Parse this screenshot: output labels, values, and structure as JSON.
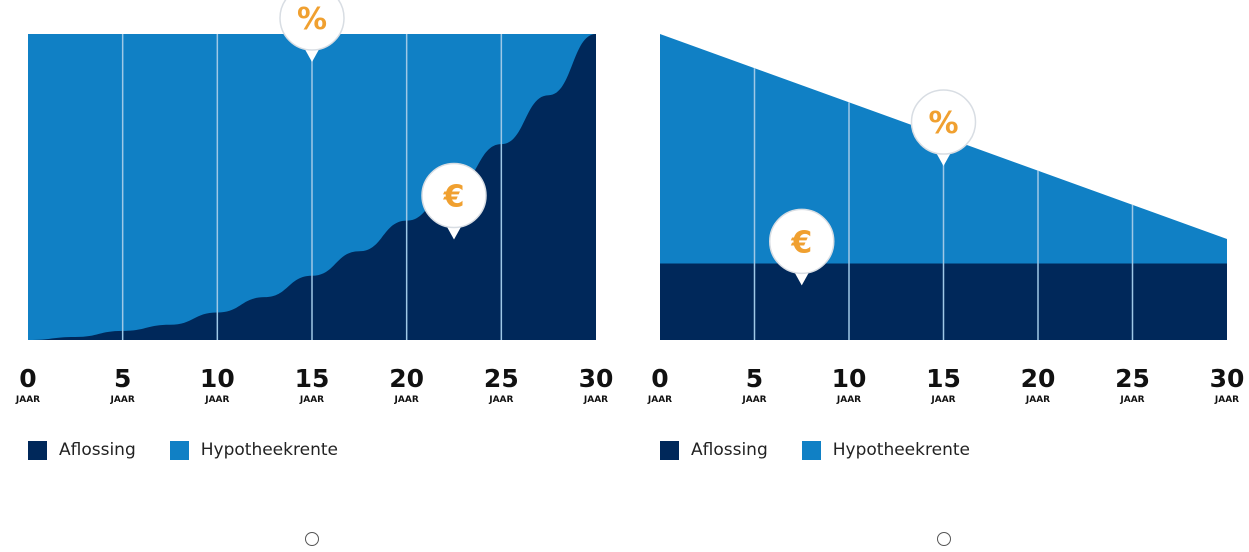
{
  "colors": {
    "aflossing": "#00285a",
    "hypotheekrente": "#1080c5",
    "gridline": "#9fc8e6",
    "marker": "#f0a030"
  },
  "markers": {
    "rente_icon": "percent-icon",
    "aflossing_icon": "euro-icon",
    "rente_glyph": "%",
    "aflossing_glyph": "€"
  },
  "chart_data": [
    {
      "type": "area",
      "x": [
        0,
        5,
        10,
        15,
        20,
        25,
        30
      ],
      "tick_labels": [
        "0",
        "5",
        "10",
        "15",
        "20",
        "25",
        "30"
      ],
      "tick_unit": "JAAR",
      "xlim": [
        0,
        30
      ],
      "ylim": [
        0,
        1
      ],
      "grid": true,
      "stacked": true,
      "series": [
        {
          "name": "Aflossing",
          "x": [
            0,
            2.5,
            5,
            7.5,
            10,
            12.5,
            15,
            17.5,
            20,
            22.5,
            25,
            27.5,
            30
          ],
          "values": [
            0,
            0.01,
            0.03,
            0.05,
            0.09,
            0.14,
            0.21,
            0.29,
            0.39,
            0.5,
            0.64,
            0.8,
            1.0
          ]
        },
        {
          "name": "Hypotheekrente",
          "x": [
            0,
            2.5,
            5,
            7.5,
            10,
            12.5,
            15,
            17.5,
            20,
            22.5,
            25,
            27.5,
            30
          ],
          "values": [
            1.0,
            0.99,
            0.97,
            0.95,
            0.91,
            0.86,
            0.79,
            0.71,
            0.61,
            0.5,
            0.36,
            0.2,
            0
          ]
        }
      ],
      "annotations": [
        {
          "marker": "%",
          "x": 15,
          "y": 1.0,
          "series": "Hypotheekrente"
        },
        {
          "marker": "€",
          "x": 22.5,
          "y": 0.42,
          "series": "Aflossing"
        }
      ],
      "legend": [
        "Aflossing",
        "Hypotheekrente"
      ],
      "legend_position": "bottom-left"
    },
    {
      "type": "area",
      "x": [
        0,
        5,
        10,
        15,
        20,
        25,
        30
      ],
      "tick_labels": [
        "0",
        "5",
        "10",
        "15",
        "20",
        "25",
        "30"
      ],
      "tick_unit": "JAAR",
      "xlim": [
        0,
        30
      ],
      "ylim": [
        0,
        1
      ],
      "grid": true,
      "stacked": true,
      "series": [
        {
          "name": "Aflossing",
          "x": [
            0,
            30
          ],
          "values": [
            0.25,
            0.25
          ]
        },
        {
          "name": "Hypotheekrente",
          "x": [
            0,
            30
          ],
          "values": [
            0.75,
            0.08
          ]
        }
      ],
      "annotations": [
        {
          "marker": "%",
          "x": 15,
          "y": 0.66,
          "series": "Hypotheekrente"
        },
        {
          "marker": "€",
          "x": 7.5,
          "y": 0.27,
          "series": "Aflossing"
        }
      ],
      "legend": [
        "Aflossing",
        "Hypotheekrente"
      ],
      "legend_position": "bottom-left"
    }
  ],
  "carousel": {
    "slides": 2
  }
}
